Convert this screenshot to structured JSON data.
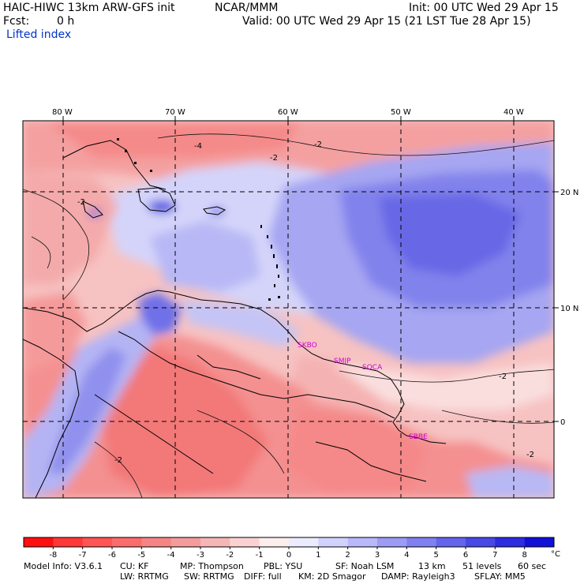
{
  "header": {
    "model": "HAIC-HIWC 13km ARW-GFS init",
    "org": "NCAR/MMM",
    "init": "Init: 00 UTC Wed 29 Apr 15",
    "fcst_label": "Fcst:",
    "fcst_value": "0 h",
    "valid": "Valid: 00 UTC Wed 29 Apr 15 (21 LST Tue 28 Apr 15)",
    "field": "Lifted index"
  },
  "map": {
    "lon_labels": [
      "80 W",
      "70 W",
      "60 W",
      "50 W",
      "40 W"
    ],
    "lat_labels": [
      "20 N",
      "10 N",
      "0"
    ],
    "contour_label": "-2",
    "contour_label_2": "-4",
    "stations": [
      "SKBO",
      "SMJP",
      "SOCA",
      "SBBE"
    ]
  },
  "colorbar": {
    "ticks": [
      "-8",
      "-7",
      "-6",
      "-5",
      "-4",
      "-3",
      "-2",
      "-1",
      "0",
      "1",
      "2",
      "3",
      "4",
      "5",
      "6",
      "7",
      "8"
    ],
    "unit": "°C",
    "colors": [
      "#ff1010",
      "#ff3838",
      "#ff5555",
      "#fb6c6c",
      "#f58585",
      "#f49c9c",
      "#f6b6b6",
      "#fad2d2",
      "#fdeeee",
      "#ececff",
      "#d2d2ff",
      "#b8b8fb",
      "#9c9cf5",
      "#8080f0",
      "#6464ec",
      "#4848e6",
      "#2c2ce0",
      "#1010d8"
    ]
  },
  "footer": {
    "line1": [
      {
        "k": "model_info",
        "text": "Model Info: V3.6.1"
      },
      {
        "k": "cu",
        "text": "CU: KF"
      },
      {
        "k": "mp",
        "text": "MP: Thompson"
      },
      {
        "k": "pbl",
        "text": "PBL: YSU"
      },
      {
        "k": "sf",
        "text": "SF: Noah LSM"
      },
      {
        "k": "res",
        "text": "13 km"
      },
      {
        "k": "levels",
        "text": "51 levels"
      },
      {
        "k": "dt",
        "text": "60 sec"
      }
    ],
    "line2": [
      {
        "k": "lw",
        "text": "LW: RRTMG"
      },
      {
        "k": "sw",
        "text": "SW: RRTMG"
      },
      {
        "k": "diff",
        "text": "DIFF: full"
      },
      {
        "k": "km",
        "text": "KM: 2D Smagor"
      },
      {
        "k": "damp",
        "text": "DAMP: Rayleigh3"
      },
      {
        "k": "sflay",
        "text": "SFLAY: MM5"
      }
    ]
  }
}
